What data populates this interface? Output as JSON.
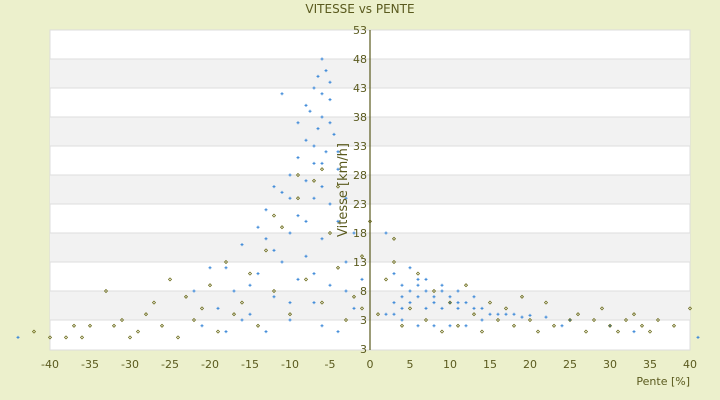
{
  "chart_data": {
    "type": "scatter",
    "title": "VITESSE vs PENTE",
    "xlabel": "Pente [%]",
    "ylabel": "Vitesse [km/h]",
    "xlim": [
      -40,
      40
    ],
    "ylim": [
      -2.2,
      53
    ],
    "x_ticks": [
      "-40",
      "-35",
      "-30",
      "-25",
      "-20",
      "-15",
      "-10",
      "-5",
      "0",
      "5",
      "10",
      "15",
      "20",
      "25",
      "30",
      "35",
      "40"
    ],
    "y_ticks": [
      "53",
      "48",
      "43",
      "38",
      "33",
      "28",
      "23",
      "18",
      "13",
      "8",
      "3",
      "3"
    ],
    "grid": true,
    "colors": {
      "blue": "#3a87d8",
      "olive": "#6b6b1a",
      "band": "#f2f2f2",
      "axis": "#5a5a1e"
    },
    "series": [
      {
        "name": "blue",
        "marker": "plus",
        "points": [
          [
            -6,
            48
          ],
          [
            -5.5,
            46
          ],
          [
            -6.5,
            45
          ],
          [
            -5,
            44
          ],
          [
            -7,
            43
          ],
          [
            -6,
            42
          ],
          [
            -5,
            41
          ],
          [
            -8,
            40
          ],
          [
            -7.5,
            39
          ],
          [
            -6,
            38
          ],
          [
            -5,
            37
          ],
          [
            -6.5,
            36
          ],
          [
            -4.5,
            35
          ],
          [
            -8,
            34
          ],
          [
            -7,
            33
          ],
          [
            -5.5,
            32
          ],
          [
            -9,
            31
          ],
          [
            -6,
            30
          ],
          [
            -4,
            29
          ],
          [
            -10,
            28
          ],
          [
            -8,
            27
          ],
          [
            -6,
            26
          ],
          [
            -11,
            25
          ],
          [
            -7,
            24
          ],
          [
            -5,
            23
          ],
          [
            -13,
            22
          ],
          [
            -9,
            21
          ],
          [
            -4,
            20
          ],
          [
            -14,
            19
          ],
          [
            -10,
            18
          ],
          [
            -6,
            17
          ],
          [
            -16,
            16
          ],
          [
            -12,
            15
          ],
          [
            -8,
            14
          ],
          [
            -3,
            13
          ],
          [
            -18,
            12
          ],
          [
            -14,
            11
          ],
          [
            -9,
            10
          ],
          [
            -5,
            9
          ],
          [
            -17,
            8
          ],
          [
            -12,
            7
          ],
          [
            -7,
            6
          ],
          [
            -2,
            5
          ],
          [
            -15,
            4
          ],
          [
            -10,
            3
          ],
          [
            -6,
            2
          ],
          [
            -13,
            1
          ],
          [
            -19,
            5
          ],
          [
            -21,
            2
          ],
          [
            -3,
            8
          ],
          [
            -1,
            10
          ],
          [
            -11,
            13
          ],
          [
            -15,
            9
          ],
          [
            -8,
            20
          ],
          [
            -12,
            26
          ],
          [
            -10,
            24
          ],
          [
            -7,
            30
          ],
          [
            -4,
            32
          ],
          [
            -3,
            24
          ],
          [
            -2,
            18
          ],
          [
            -9,
            37
          ],
          [
            -11,
            42
          ],
          [
            -10,
            6
          ],
          [
            -16,
            3
          ],
          [
            -4,
            1
          ],
          [
            -18,
            1
          ],
          [
            -22,
            8
          ],
          [
            -20,
            12
          ],
          [
            -13,
            17
          ],
          [
            -7,
            11
          ],
          [
            2,
            4
          ],
          [
            3,
            6
          ],
          [
            4,
            7
          ],
          [
            5,
            8
          ],
          [
            5,
            6
          ],
          [
            6,
            9
          ],
          [
            6,
            7
          ],
          [
            7,
            8
          ],
          [
            7,
            5
          ],
          [
            8,
            7
          ],
          [
            8,
            6
          ],
          [
            9,
            8
          ],
          [
            9,
            5
          ],
          [
            10,
            6
          ],
          [
            10,
            7
          ],
          [
            11,
            5
          ],
          [
            11,
            6
          ],
          [
            12,
            6
          ],
          [
            13,
            5
          ],
          [
            14,
            5
          ],
          [
            15,
            4
          ],
          [
            16,
            4
          ],
          [
            17,
            4
          ],
          [
            18,
            4
          ],
          [
            19,
            3.5
          ],
          [
            20,
            3.8
          ],
          [
            22,
            3.5
          ],
          [
            25,
            3
          ],
          [
            4,
            9
          ],
          [
            3,
            11
          ],
          [
            6,
            10
          ],
          [
            2,
            18
          ],
          [
            4,
            3
          ],
          [
            6,
            2
          ],
          [
            8,
            2
          ],
          [
            10,
            2
          ],
          [
            12,
            2
          ],
          [
            14,
            3
          ],
          [
            24,
            2
          ],
          [
            30,
            2
          ],
          [
            33,
            1
          ],
          [
            41,
            0
          ],
          [
            -44,
            0
          ],
          [
            5,
            12
          ],
          [
            7,
            10
          ],
          [
            9,
            9
          ],
          [
            13,
            7
          ],
          [
            11,
            8
          ],
          [
            4,
            5
          ],
          [
            3,
            4
          ]
        ]
      },
      {
        "name": "olive",
        "marker": "diamond",
        "points": [
          [
            -42,
            1
          ],
          [
            -40,
            0
          ],
          [
            -38,
            0
          ],
          [
            -36,
            0
          ],
          [
            -35,
            2
          ],
          [
            -33,
            8
          ],
          [
            -32,
            2
          ],
          [
            -30,
            0
          ],
          [
            -29,
            1
          ],
          [
            -28,
            4
          ],
          [
            -26,
            2
          ],
          [
            -25,
            10
          ],
          [
            -24,
            0
          ],
          [
            -23,
            7
          ],
          [
            -22,
            3
          ],
          [
            -21,
            5
          ],
          [
            -20,
            9
          ],
          [
            -19,
            1
          ],
          [
            -18,
            13
          ],
          [
            -17,
            4
          ],
          [
            -16,
            6
          ],
          [
            -15,
            11
          ],
          [
            -14,
            2
          ],
          [
            -13,
            15
          ],
          [
            -12,
            8
          ],
          [
            -11,
            19
          ],
          [
            -10,
            4
          ],
          [
            -9,
            24
          ],
          [
            -8,
            10
          ],
          [
            -7,
            27
          ],
          [
            -6,
            6
          ],
          [
            -5,
            18
          ],
          [
            -4,
            12
          ],
          [
            -3,
            3
          ],
          [
            -2,
            7
          ],
          [
            -1,
            5
          ],
          [
            0,
            20
          ],
          [
            1,
            4
          ],
          [
            2,
            10
          ],
          [
            3,
            13
          ],
          [
            4,
            2
          ],
          [
            5,
            5
          ],
          [
            6,
            11
          ],
          [
            7,
            3
          ],
          [
            8,
            8
          ],
          [
            9,
            1
          ],
          [
            10,
            6
          ],
          [
            11,
            2
          ],
          [
            12,
            9
          ],
          [
            13,
            4
          ],
          [
            14,
            1
          ],
          [
            15,
            6
          ],
          [
            16,
            3
          ],
          [
            17,
            5
          ],
          [
            18,
            2
          ],
          [
            19,
            7
          ],
          [
            20,
            3
          ],
          [
            21,
            1
          ],
          [
            22,
            6
          ],
          [
            23,
            2
          ],
          [
            25,
            3
          ],
          [
            26,
            4
          ],
          [
            27,
            1
          ],
          [
            28,
            3
          ],
          [
            29,
            5
          ],
          [
            30,
            2
          ],
          [
            31,
            1
          ],
          [
            32,
            3
          ],
          [
            33,
            4
          ],
          [
            34,
            2
          ],
          [
            35,
            1
          ],
          [
            36,
            3
          ],
          [
            38,
            2
          ],
          [
            40,
            5
          ],
          [
            -37,
            2
          ],
          [
            -31,
            3
          ],
          [
            -27,
            6
          ],
          [
            -6,
            29
          ],
          [
            -9,
            28
          ],
          [
            -4,
            26
          ],
          [
            -12,
            21
          ],
          [
            3,
            17
          ],
          [
            -1,
            14
          ]
        ]
      }
    ]
  }
}
